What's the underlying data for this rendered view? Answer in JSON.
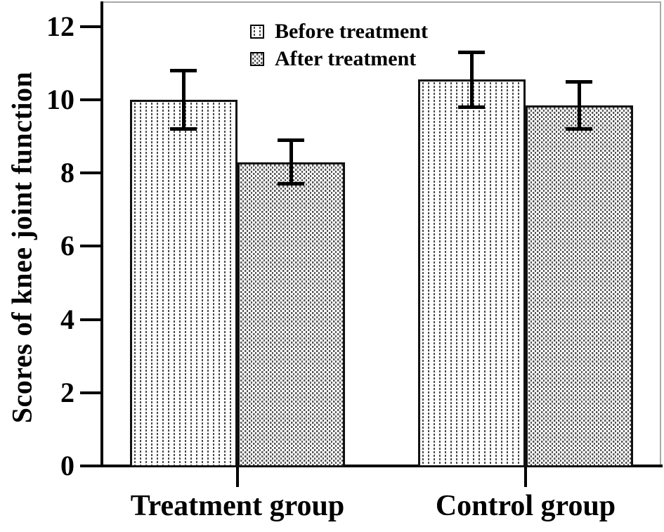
{
  "colors": {
    "axis": "#000000",
    "bar_border": "#111111",
    "pattern_dot_before": "#4a4a4a",
    "pattern_dot_after": "#555555",
    "frame_gray": "#a8a8a8",
    "text": "#000000",
    "background": "#ffffff"
  },
  "chart_data": {
    "type": "bar",
    "title": "",
    "xlabel": "",
    "ylabel": "Scores of knee joint function",
    "categories": [
      "Treatment group",
      "Control group"
    ],
    "series": [
      {
        "name": "Before treatment",
        "pattern": "dotted-columns",
        "values": [
          10.0,
          10.55
        ],
        "errors": [
          0.8,
          0.75
        ]
      },
      {
        "name": "After treatment",
        "pattern": "dense-dots",
        "values": [
          8.3,
          9.85
        ],
        "errors": [
          0.6,
          0.65
        ]
      }
    ],
    "error_bars": true,
    "ylim": [
      0,
      12.67
    ],
    "yticks": [
      0,
      2,
      4,
      6,
      8,
      10,
      12
    ],
    "grid": false,
    "legend_position": "top-center-inside"
  }
}
